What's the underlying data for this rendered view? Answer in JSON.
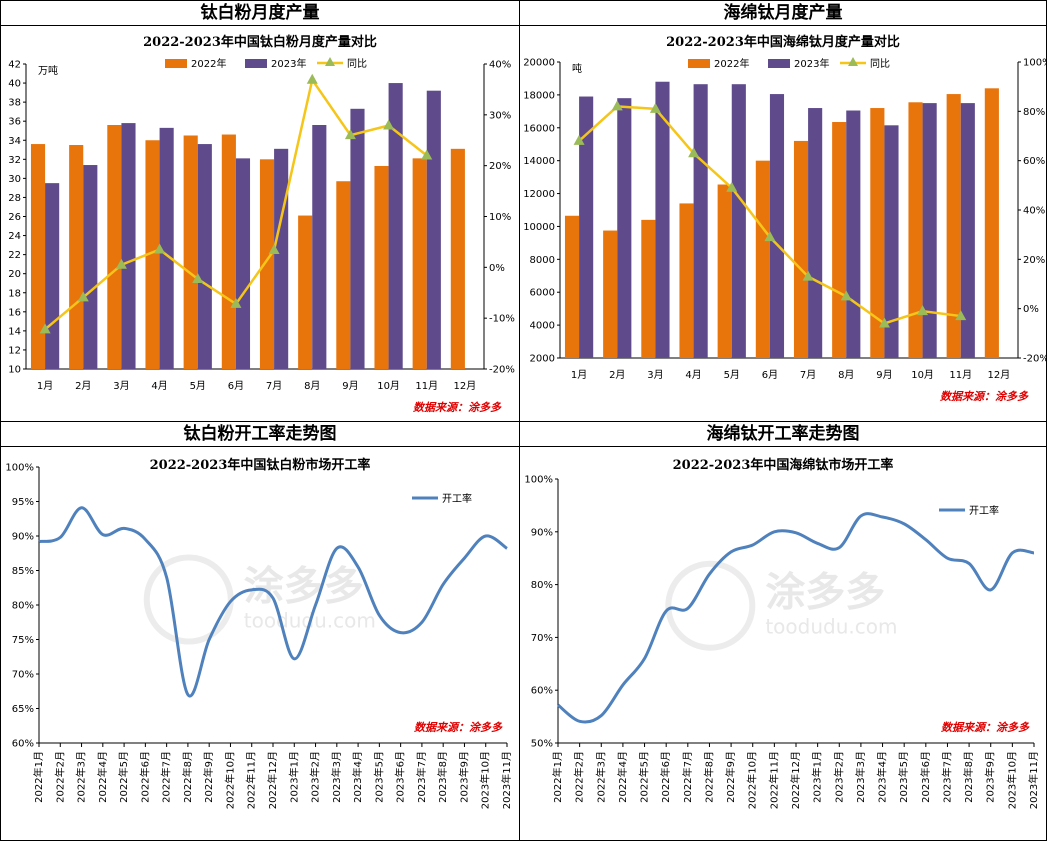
{
  "panels": [
    {
      "title": "钛白粉月度产量",
      "chart_data": {
        "type": "bar",
        "title": "2022-2023年中国钛白粉月度产量对比",
        "categories": [
          "1月",
          "2月",
          "3月",
          "4月",
          "5月",
          "6月",
          "7月",
          "8月",
          "9月",
          "10月",
          "11月",
          "12月"
        ],
        "series": [
          {
            "name": "2022年",
            "values": [
              33.6,
              33.5,
              35.6,
              34.0,
              34.5,
              34.6,
              32.0,
              26.1,
              29.7,
              31.3,
              32.1,
              33.1
            ],
            "color": "#E8740C"
          },
          {
            "name": "2023年",
            "values": [
              29.5,
              31.4,
              35.8,
              35.3,
              33.6,
              32.1,
              33.1,
              35.6,
              37.3,
              40.0,
              39.2,
              null
            ],
            "color": "#5F4B8B"
          }
        ],
        "line_series": {
          "name": "同比",
          "values": [
            -12.2,
            -5.9,
            0.5,
            3.5,
            -2.3,
            -7.2,
            3.4,
            36.9,
            26.0,
            27.9,
            22.0,
            null
          ],
          "color": "#F5C518",
          "marker_color": "#9BBB59"
        },
        "yunit": "万吨",
        "ylim": [
          10,
          42
        ],
        "yticks": [
          10,
          12,
          14,
          16,
          18,
          20,
          22,
          24,
          26,
          28,
          30,
          32,
          34,
          36,
          38,
          40,
          42
        ],
        "y2lim": [
          -20,
          40
        ],
        "y2ticks": [
          "-20%",
          "-10%",
          "0%",
          "10%",
          "20%",
          "30%",
          "40%"
        ],
        "source": "数据来源：涂多多"
      }
    },
    {
      "title": "海绵钛月度产量",
      "chart_data": {
        "type": "bar",
        "title": "2022-2023年中国海绵钛月度产量对比",
        "categories": [
          "1月",
          "2月",
          "3月",
          "4月",
          "5月",
          "6月",
          "7月",
          "8月",
          "9月",
          "10月",
          "11月",
          "12月"
        ],
        "series": [
          {
            "name": "2022年",
            "values": [
              10650,
              9750,
              10400,
              11400,
              12550,
              14000,
              15200,
              16350,
              17200,
              17550,
              18050,
              18400
            ],
            "color": "#E8740C"
          },
          {
            "name": "2023年",
            "values": [
              17900,
              17800,
              18800,
              18650,
              18650,
              18050,
              17200,
              17050,
              16150,
              17500,
              17500,
              null
            ],
            "color": "#5F4B8B"
          }
        ],
        "line_series": {
          "name": "同比",
          "values": [
            68,
            82,
            81,
            63,
            49,
            29,
            13,
            5,
            -6,
            -1,
            -3,
            null
          ],
          "color": "#F5C518",
          "marker_color": "#9BBB59"
        },
        "yunit": "吨",
        "ylim": [
          2000,
          20000
        ],
        "yticks": [
          2000,
          4000,
          6000,
          8000,
          10000,
          12000,
          14000,
          16000,
          18000,
          20000
        ],
        "y2lim": [
          -20,
          100
        ],
        "y2ticks": [
          "-20%",
          "0%",
          "20%",
          "40%",
          "60%",
          "80%",
          "100%"
        ],
        "source": "数据来源：涂多多"
      }
    },
    {
      "title": "钛白粉开工率走势图",
      "chart_data": {
        "type": "line",
        "title": "2022-2023年中国钛白粉市场开工率",
        "x": [
          "2022年1月",
          "2022年2月",
          "2022年3月",
          "2022年4月",
          "2022年5月",
          "2022年6月",
          "2022年7月",
          "2022年8月",
          "2022年9月",
          "2022年10月",
          "2022年11月",
          "2022年12月",
          "2023年1月",
          "2023年2月",
          "2023年3月",
          "2023年4月",
          "2023年5月",
          "2023年6月",
          "2023年7月",
          "2023年8月",
          "2023年9月",
          "2023年10月",
          "2023年11月"
        ],
        "series": [
          {
            "name": "开工率",
            "values": [
              89.2,
              89.8,
              94.1,
              90.2,
              91.1,
              89.5,
              84.0,
              67.0,
              75.0,
              80.5,
              82.2,
              81.0,
              72.2,
              80.0,
              88.2,
              85.5,
              78.5,
              76.0,
              77.5,
              83.0,
              86.8,
              90.0,
              88.2
            ],
            "color": "#4F81BD"
          }
        ],
        "ylim": [
          60,
          100
        ],
        "yticks": [
          "60%",
          "65%",
          "70%",
          "75%",
          "80%",
          "85%",
          "90%",
          "95%",
          "100%"
        ],
        "source": "数据来源：涂多多",
        "watermark": "涂多多",
        "watermark_url": "toodudu.com"
      }
    },
    {
      "title": "海绵钛开工率走势图",
      "chart_data": {
        "type": "line",
        "title": "2022-2023年中国海绵钛市场开工率",
        "x": [
          "2022年1月",
          "2022年2月",
          "2022年3月",
          "2022年4月",
          "2022年5月",
          "2022年6月",
          "2022年7月",
          "2022年8月",
          "2022年9月",
          "2022年10月",
          "2022年11月",
          "2022年12月",
          "2023年1月",
          "2023年2月",
          "2023年3月",
          "2023年4月",
          "2023年5月",
          "2023年6月",
          "2023年7月",
          "2023年8月",
          "2023年9月",
          "2023年10月",
          "2023年11月"
        ],
        "series": [
          {
            "name": "开工率",
            "values": [
              57.2,
              54.1,
              55.2,
              61.0,
              66.0,
              75.0,
              75.5,
              82.0,
              86.2,
              87.5,
              90.0,
              89.8,
              87.8,
              87.0,
              93.0,
              92.8,
              91.5,
              88.5,
              85.0,
              84.0,
              79.0,
              86.0,
              86.0
            ],
            "color": "#4F81BD"
          }
        ],
        "ylim": [
          50,
          100
        ],
        "yticks": [
          "50%",
          "60%",
          "70%",
          "80%",
          "90%",
          "100%"
        ],
        "source": "数据来源：涂多多",
        "watermark": "涂多多",
        "watermark_url": "toodudu.com"
      }
    }
  ]
}
